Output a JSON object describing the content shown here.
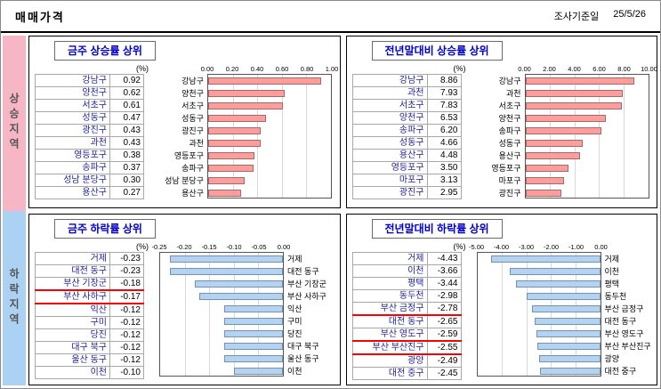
{
  "header": {
    "title": "매매가격",
    "date_label": "조사기준일",
    "date_value": "25/5/26"
  },
  "sidebar": {
    "up_label": "상승지역",
    "down_label": "하락지역"
  },
  "colors": {
    "up_side_bg": "#f7b6c5",
    "down_side_bg": "#abd2f2",
    "up_bar": "#ff9c9c",
    "up_bar_border": "#a36a6a",
    "down_bar": "#b5d3f0",
    "down_bar_border": "#6f93b8",
    "panel_title_text": "#0000cc",
    "highlight_underline": "#ff0000"
  },
  "chart_data": [
    {
      "type": "bar",
      "orientation": "horizontal",
      "title": "금주 상승률 상위",
      "unit": "(%)",
      "categories": [
        "강남구",
        "양천구",
        "서초구",
        "성동구",
        "광진구",
        "과천",
        "영등포구",
        "송파구",
        "성남 분당구",
        "용산구"
      ],
      "values": [
        0.92,
        0.62,
        0.61,
        0.47,
        0.43,
        0.43,
        0.38,
        0.37,
        0.3,
        0.27
      ],
      "xlim": [
        0,
        1.0
      ],
      "tick_labels": [
        "0.00",
        "0.20",
        "0.40",
        "0.60",
        "0.80",
        "1.00"
      ],
      "bar_color": "#ff9c9c",
      "bar_border": "#a36a6a",
      "negative": false,
      "label_side": "left",
      "highlight_rows": []
    },
    {
      "type": "bar",
      "orientation": "horizontal",
      "title": "전년말대비 상승률 상위",
      "unit": "(%)",
      "categories": [
        "강남구",
        "과천",
        "서초구",
        "양천구",
        "송파구",
        "성동구",
        "용산구",
        "영등포구",
        "마포구",
        "광진구"
      ],
      "values": [
        8.86,
        7.93,
        7.83,
        6.53,
        6.2,
        4.66,
        4.48,
        3.5,
        3.13,
        2.95
      ],
      "xlim": [
        0,
        10.0
      ],
      "tick_labels": [
        "0.00",
        "2.00",
        "4.00",
        "6.00",
        "8.00",
        "10.00"
      ],
      "bar_color": "#ff9c9c",
      "bar_border": "#a36a6a",
      "negative": false,
      "label_side": "left",
      "highlight_rows": []
    },
    {
      "type": "bar",
      "orientation": "horizontal",
      "title": "금주 하락률 상위",
      "unit": "(%)",
      "categories": [
        "거제",
        "대전 동구",
        "부산 기장군",
        "부산 사하구",
        "익산",
        "구미",
        "당진",
        "대구 북구",
        "울산 동구",
        "이천"
      ],
      "values": [
        -0.23,
        -0.23,
        -0.18,
        -0.17,
        -0.12,
        -0.12,
        -0.12,
        -0.12,
        -0.12,
        -0.1
      ],
      "xlim": [
        -0.25,
        0
      ],
      "tick_labels": [
        "-0.25",
        "-0.20",
        "-0.15",
        "-0.10",
        "-0.05",
        "0.00"
      ],
      "bar_color": "#b5d3f0",
      "bar_border": "#6f93b8",
      "negative": true,
      "label_side": "right",
      "highlight_rows": [
        2,
        3
      ]
    },
    {
      "type": "bar",
      "orientation": "horizontal",
      "title": "전년말대비 하락률 상위",
      "unit": "(%)",
      "categories": [
        "거제",
        "이천",
        "평택",
        "동두천",
        "부산 금정구",
        "대전 동구",
        "부산 영도구",
        "부산 부산진구",
        "광양",
        "대전 중구"
      ],
      "values": [
        -4.43,
        -3.66,
        -3.44,
        -2.98,
        -2.78,
        -2.65,
        -2.59,
        -2.55,
        -2.49,
        -2.45
      ],
      "xlim": [
        -5.0,
        0
      ],
      "tick_labels": [
        "-5.00",
        "-4.00",
        "-3.00",
        "-2.00",
        "-1.00",
        "0.00"
      ],
      "bar_color": "#b5d3f0",
      "bar_border": "#6f93b8",
      "negative": true,
      "label_side": "right",
      "highlight_rows": [
        4,
        6,
        7
      ]
    }
  ]
}
